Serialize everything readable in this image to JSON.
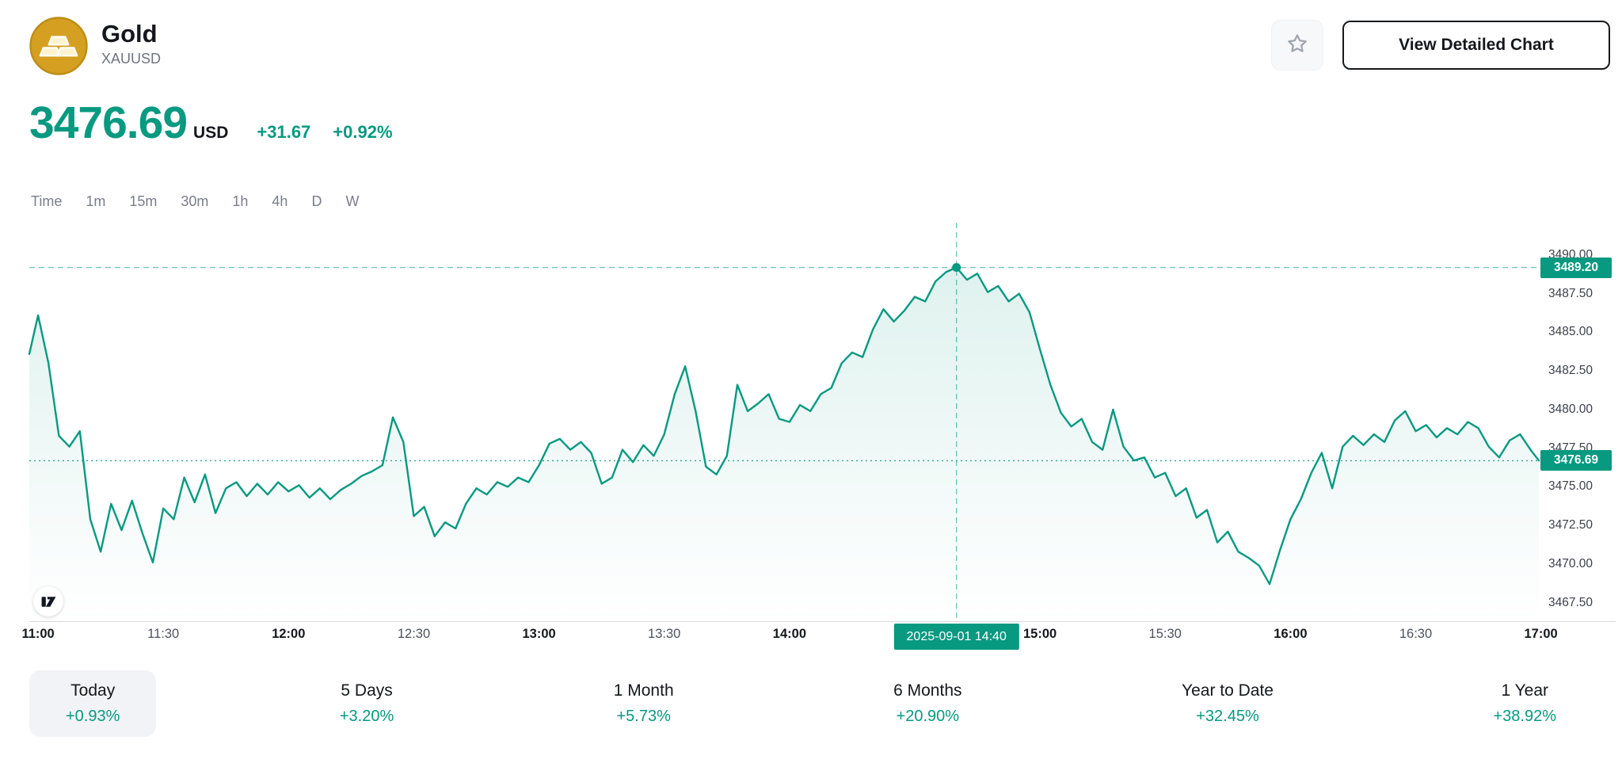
{
  "accent_color": "#089981",
  "gold_color": "#d4a017",
  "header": {
    "title": "Gold",
    "symbol": "XAUUSD",
    "logo_icon": "gold-bars-icon",
    "favorite_icon": "star-icon",
    "view_detailed_chart_label": "View Detailed Chart"
  },
  "price": {
    "value": "3476.69",
    "currency": "USD",
    "change_abs": "+31.67",
    "change_pct": "+0.92%"
  },
  "intervals": [
    "Time",
    "1m",
    "15m",
    "30m",
    "1h",
    "4h",
    "D",
    "W"
  ],
  "chart_data": {
    "type": "line",
    "symbol": "XAUUSD",
    "line_color": "#089981",
    "t_range": [
      -2.1,
      359.5
    ],
    "ylim": [
      3466.3,
      3492.1
    ],
    "y_ticks": [
      "3490.00",
      "3487.50",
      "3485.00",
      "3482.50",
      "3480.00",
      "3477.50",
      "3475.00",
      "3472.50",
      "3470.00",
      "3467.50"
    ],
    "x_ticks": [
      {
        "t": 0,
        "label": "11:00",
        "bold": true
      },
      {
        "t": 30,
        "label": "11:30",
        "bold": false
      },
      {
        "t": 60,
        "label": "12:00",
        "bold": true
      },
      {
        "t": 90,
        "label": "12:30",
        "bold": false
      },
      {
        "t": 120,
        "label": "13:00",
        "bold": true
      },
      {
        "t": 150,
        "label": "13:30",
        "bold": false
      },
      {
        "t": 180,
        "label": "14:00",
        "bold": true
      },
      {
        "t": 240,
        "label": "15:00",
        "bold": true
      },
      {
        "t": 270,
        "label": "15:30",
        "bold": false
      },
      {
        "t": 300,
        "label": "16:00",
        "bold": true
      },
      {
        "t": 330,
        "label": "16:30",
        "bold": false
      },
      {
        "t": 360,
        "label": "17:00",
        "bold": true
      }
    ],
    "crosshair": {
      "t": 220,
      "price": 3489.2,
      "price_label": "3489.20",
      "time_label": "2025-09-01 14:40"
    },
    "current_price": {
      "price": 3476.69,
      "label": "3476.69"
    },
    "points": [
      [
        -2.1,
        3483.6
      ],
      [
        0,
        3486.1
      ],
      [
        2.5,
        3483.0
      ],
      [
        5,
        3478.3
      ],
      [
        7.5,
        3477.6
      ],
      [
        10,
        3478.6
      ],
      [
        12.5,
        3472.9
      ],
      [
        15,
        3470.8
      ],
      [
        17.5,
        3473.9
      ],
      [
        20,
        3472.2
      ],
      [
        22.5,
        3474.1
      ],
      [
        25,
        3472.0
      ],
      [
        27.5,
        3470.1
      ],
      [
        30,
        3473.6
      ],
      [
        32.5,
        3472.9
      ],
      [
        35,
        3475.6
      ],
      [
        37.5,
        3474.0
      ],
      [
        40,
        3475.8
      ],
      [
        42.5,
        3473.3
      ],
      [
        45,
        3474.9
      ],
      [
        47.5,
        3475.3
      ],
      [
        50,
        3474.4
      ],
      [
        52.5,
        3475.2
      ],
      [
        55,
        3474.5
      ],
      [
        57.5,
        3475.3
      ],
      [
        60,
        3474.7
      ],
      [
        62.5,
        3475.1
      ],
      [
        65,
        3474.3
      ],
      [
        67.5,
        3474.9
      ],
      [
        70,
        3474.2
      ],
      [
        72.5,
        3474.8
      ],
      [
        75,
        3475.2
      ],
      [
        77.5,
        3475.7
      ],
      [
        80,
        3476.0
      ],
      [
        82.5,
        3476.4
      ],
      [
        85,
        3479.5
      ],
      [
        87.5,
        3477.9
      ],
      [
        90,
        3473.1
      ],
      [
        92.5,
        3473.7
      ],
      [
        95,
        3471.8
      ],
      [
        97.5,
        3472.7
      ],
      [
        100,
        3472.3
      ],
      [
        102.5,
        3473.9
      ],
      [
        105,
        3474.9
      ],
      [
        107.5,
        3474.5
      ],
      [
        110,
        3475.3
      ],
      [
        112.5,
        3475.0
      ],
      [
        115,
        3475.6
      ],
      [
        117.5,
        3475.3
      ],
      [
        120,
        3476.4
      ],
      [
        122.5,
        3477.8
      ],
      [
        125,
        3478.1
      ],
      [
        127.5,
        3477.4
      ],
      [
        130,
        3477.9
      ],
      [
        132.5,
        3477.2
      ],
      [
        135,
        3475.2
      ],
      [
        137.5,
        3475.6
      ],
      [
        140,
        3477.4
      ],
      [
        142.5,
        3476.6
      ],
      [
        145,
        3477.7
      ],
      [
        147.5,
        3477.0
      ],
      [
        150,
        3478.4
      ],
      [
        152.5,
        3481.0
      ],
      [
        155,
        3482.8
      ],
      [
        157.5,
        3479.9
      ],
      [
        160,
        3476.3
      ],
      [
        162.5,
        3475.8
      ],
      [
        165,
        3477.0
      ],
      [
        167.5,
        3481.6
      ],
      [
        170,
        3479.9
      ],
      [
        172.5,
        3480.4
      ],
      [
        175,
        3481.0
      ],
      [
        177.5,
        3479.4
      ],
      [
        180,
        3479.2
      ],
      [
        182.5,
        3480.3
      ],
      [
        185,
        3479.9
      ],
      [
        187.5,
        3481.0
      ],
      [
        190,
        3481.4
      ],
      [
        192.5,
        3483.0
      ],
      [
        195,
        3483.7
      ],
      [
        197.5,
        3483.4
      ],
      [
        200,
        3485.2
      ],
      [
        202.5,
        3486.5
      ],
      [
        205,
        3485.7
      ],
      [
        207.5,
        3486.4
      ],
      [
        210,
        3487.3
      ],
      [
        212.5,
        3487.0
      ],
      [
        215,
        3488.3
      ],
      [
        217.5,
        3488.9
      ],
      [
        220,
        3489.2
      ],
      [
        222.5,
        3488.4
      ],
      [
        225,
        3488.8
      ],
      [
        227.5,
        3487.6
      ],
      [
        230,
        3488.0
      ],
      [
        232.5,
        3487.0
      ],
      [
        235,
        3487.5
      ],
      [
        237.5,
        3486.3
      ],
      [
        240,
        3483.9
      ],
      [
        242.5,
        3481.6
      ],
      [
        245,
        3479.8
      ],
      [
        247.5,
        3478.9
      ],
      [
        250,
        3479.4
      ],
      [
        252.5,
        3477.9
      ],
      [
        255,
        3477.4
      ],
      [
        257.5,
        3480.0
      ],
      [
        260,
        3477.6
      ],
      [
        262.5,
        3476.7
      ],
      [
        265,
        3476.9
      ],
      [
        267.5,
        3475.6
      ],
      [
        270,
        3475.9
      ],
      [
        272.5,
        3474.4
      ],
      [
        275,
        3474.9
      ],
      [
        277.5,
        3473.0
      ],
      [
        280,
        3473.5
      ],
      [
        282.5,
        3471.4
      ],
      [
        285,
        3472.1
      ],
      [
        287.5,
        3470.8
      ],
      [
        290,
        3470.4
      ],
      [
        292.5,
        3469.9
      ],
      [
        295,
        3468.7
      ],
      [
        297.5,
        3470.9
      ],
      [
        300,
        3472.9
      ],
      [
        302.5,
        3474.2
      ],
      [
        305,
        3475.9
      ],
      [
        307.5,
        3477.2
      ],
      [
        310,
        3474.9
      ],
      [
        312.5,
        3477.6
      ],
      [
        315,
        3478.3
      ],
      [
        317.5,
        3477.7
      ],
      [
        320,
        3478.4
      ],
      [
        322.5,
        3477.9
      ],
      [
        325,
        3479.3
      ],
      [
        327.5,
        3479.9
      ],
      [
        330,
        3478.6
      ],
      [
        332.5,
        3479.0
      ],
      [
        335,
        3478.2
      ],
      [
        337.5,
        3478.8
      ],
      [
        340,
        3478.4
      ],
      [
        342.5,
        3479.2
      ],
      [
        345,
        3478.8
      ],
      [
        347.5,
        3477.6
      ],
      [
        350,
        3476.9
      ],
      [
        352.5,
        3478.0
      ],
      [
        355,
        3478.4
      ],
      [
        357.5,
        3477.4
      ],
      [
        359.5,
        3476.7
      ]
    ]
  },
  "watermark_icon": "tradingview-logo",
  "periods": [
    {
      "label": "Today",
      "value": "+0.93%",
      "selected": true
    },
    {
      "label": "5 Days",
      "value": "+3.20%",
      "selected": false
    },
    {
      "label": "1 Month",
      "value": "+5.73%",
      "selected": false
    },
    {
      "label": "6 Months",
      "value": "+20.90%",
      "selected": false
    },
    {
      "label": "Year to Date",
      "value": "+32.45%",
      "selected": false
    },
    {
      "label": "1 Year",
      "value": "+38.92%",
      "selected": false
    }
  ]
}
